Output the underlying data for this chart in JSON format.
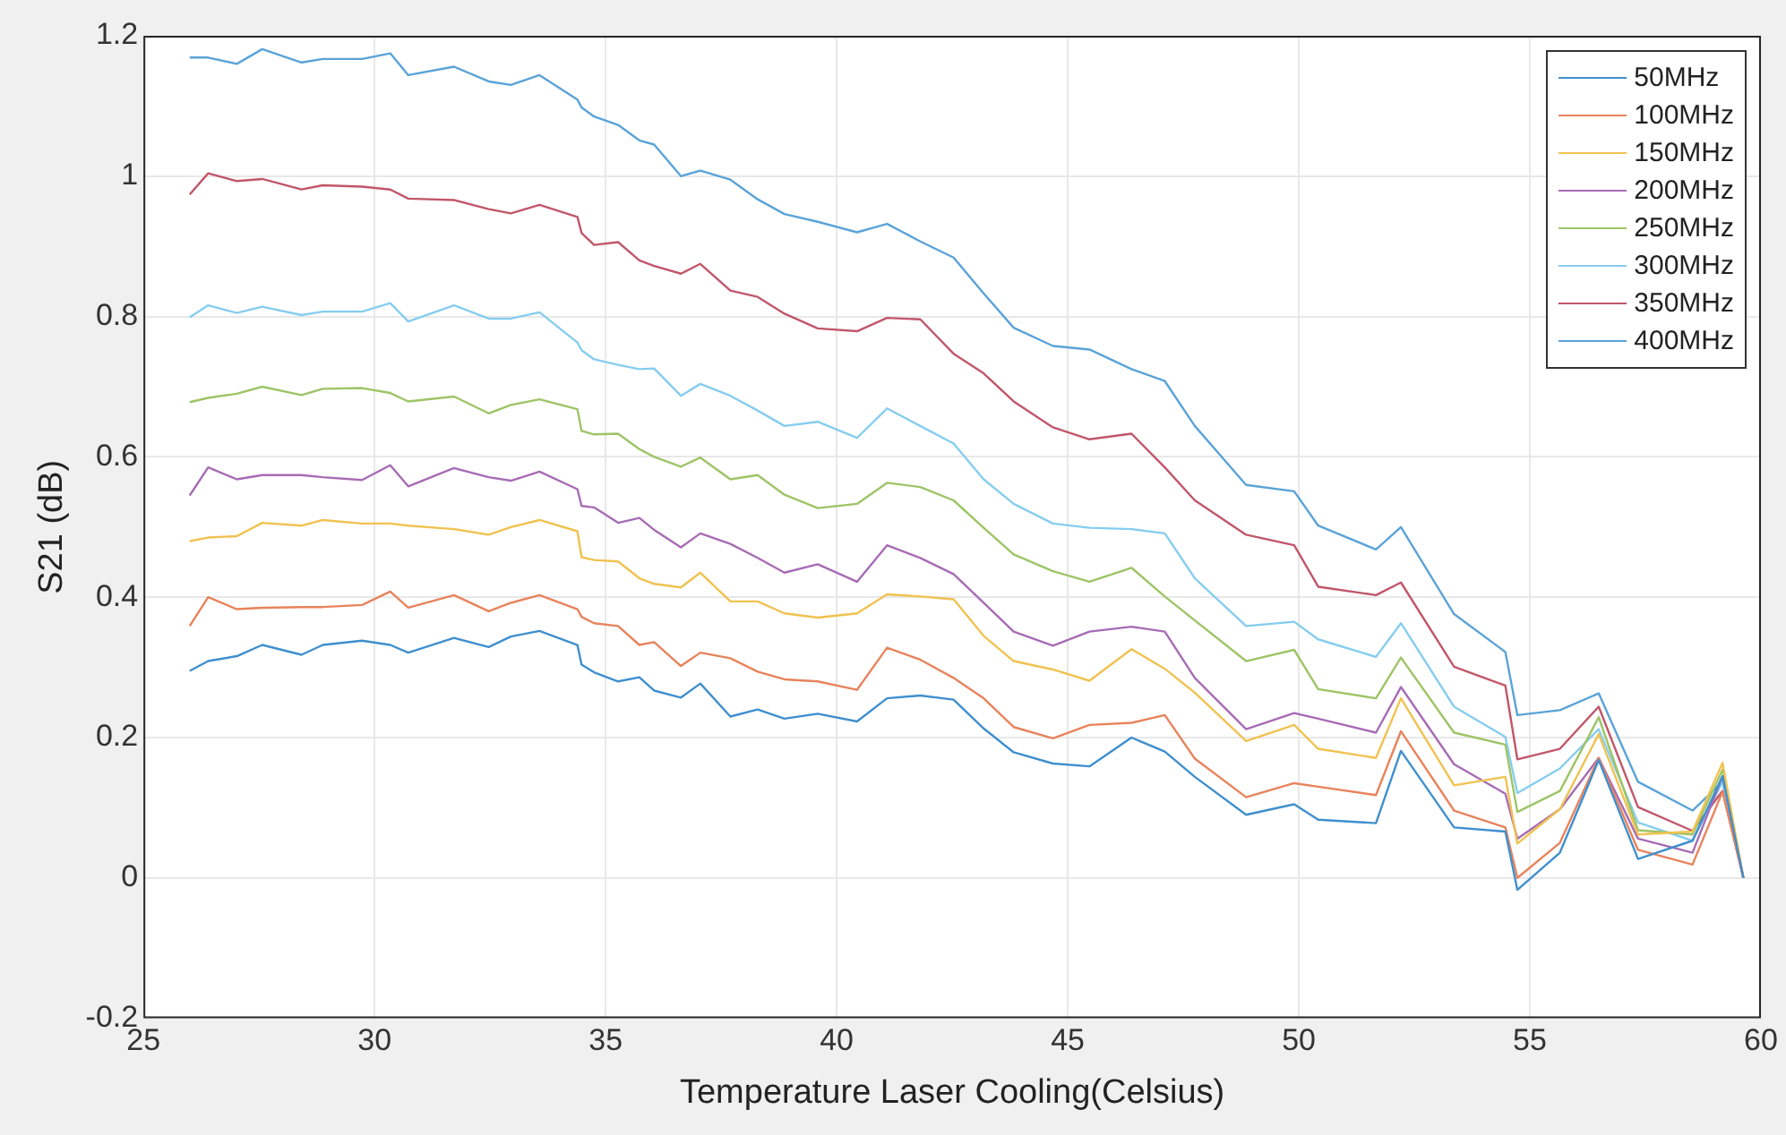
{
  "chart_data": {
    "type": "line",
    "xlabel": "Temperature Laser Cooling(Celsius)",
    "ylabel": "S21 (dB)",
    "x": [
      26.0,
      26.4,
      27.02,
      27.57,
      28.42,
      28.88,
      29.73,
      30.34,
      30.73,
      31.72,
      32.47,
      32.95,
      33.57,
      34.39,
      34.48,
      34.75,
      35.27,
      35.73,
      36.05,
      36.63,
      37.05,
      37.7,
      38.29,
      38.87,
      39.59,
      40.44,
      41.09,
      41.81,
      42.53,
      43.18,
      43.83,
      44.68,
      45.47,
      46.38,
      47.1,
      47.75,
      48.86,
      49.9,
      50.42,
      51.67,
      52.21,
      53.36,
      54.47,
      54.73,
      55.65,
      56.49,
      57.34,
      58.52,
      59.17,
      59.62
    ],
    "series": [
      {
        "name": "50MHz",
        "color": "#3f8fce",
        "values": [
          0.295,
          0.309,
          0.316,
          0.332,
          0.318,
          0.332,
          0.338,
          0.332,
          0.321,
          0.342,
          0.329,
          0.344,
          0.352,
          0.332,
          0.304,
          0.293,
          0.28,
          0.286,
          0.267,
          0.257,
          0.277,
          0.23,
          0.24,
          0.227,
          0.234,
          0.223,
          0.256,
          0.26,
          0.254,
          0.213,
          0.179,
          0.163,
          0.159,
          0.2,
          0.18,
          0.144,
          0.09,
          0.105,
          0.083,
          0.078,
          0.181,
          0.072,
          0.066,
          -0.017,
          0.036,
          0.168,
          0.027,
          0.053,
          0.145,
          0
        ]
      },
      {
        "name": "100MHz",
        "color": "#e8835c",
        "values": [
          0.359,
          0.4,
          0.383,
          0.385,
          0.386,
          0.386,
          0.389,
          0.408,
          0.385,
          0.403,
          0.38,
          0.392,
          0.403,
          0.383,
          0.372,
          0.363,
          0.359,
          0.332,
          0.336,
          0.302,
          0.321,
          0.313,
          0.294,
          0.283,
          0.28,
          0.268,
          0.328,
          0.311,
          0.285,
          0.256,
          0.215,
          0.199,
          0.218,
          0.221,
          0.232,
          0.17,
          0.115,
          0.135,
          0.13,
          0.118,
          0.209,
          0.096,
          0.072,
          0.0,
          0.05,
          0.171,
          0.04,
          0.019,
          0.123,
          0
        ]
      },
      {
        "name": "150MHz",
        "color": "#f0c250",
        "values": [
          0.48,
          0.485,
          0.487,
          0.506,
          0.502,
          0.51,
          0.505,
          0.505,
          0.502,
          0.497,
          0.489,
          0.5,
          0.51,
          0.494,
          0.457,
          0.453,
          0.451,
          0.427,
          0.419,
          0.414,
          0.435,
          0.394,
          0.394,
          0.377,
          0.371,
          0.377,
          0.404,
          0.401,
          0.397,
          0.345,
          0.309,
          0.297,
          0.281,
          0.326,
          0.298,
          0.264,
          0.195,
          0.218,
          0.184,
          0.171,
          0.256,
          0.132,
          0.144,
          0.049,
          0.098,
          0.205,
          0.062,
          0.066,
          0.164,
          0
        ]
      },
      {
        "name": "200MHz",
        "color": "#a76bb4",
        "values": [
          0.545,
          0.585,
          0.568,
          0.574,
          0.574,
          0.571,
          0.567,
          0.588,
          0.558,
          0.584,
          0.571,
          0.566,
          0.579,
          0.554,
          0.53,
          0.528,
          0.506,
          0.513,
          0.496,
          0.471,
          0.491,
          0.476,
          0.456,
          0.435,
          0.447,
          0.422,
          0.474,
          0.456,
          0.433,
          0.392,
          0.351,
          0.331,
          0.351,
          0.358,
          0.351,
          0.285,
          0.212,
          0.235,
          0.227,
          0.207,
          0.272,
          0.162,
          0.12,
          0.056,
          0.098,
          0.171,
          0.056,
          0.036,
          0.145,
          0
        ]
      },
      {
        "name": "250MHz",
        "color": "#9dc466",
        "values": [
          0.678,
          0.684,
          0.69,
          0.7,
          0.688,
          0.697,
          0.698,
          0.691,
          0.679,
          0.686,
          0.662,
          0.674,
          0.682,
          0.668,
          0.637,
          0.632,
          0.633,
          0.611,
          0.6,
          0.586,
          0.599,
          0.568,
          0.574,
          0.546,
          0.527,
          0.533,
          0.563,
          0.557,
          0.538,
          0.499,
          0.461,
          0.437,
          0.422,
          0.442,
          0.401,
          0.367,
          0.309,
          0.325,
          0.269,
          0.256,
          0.314,
          0.207,
          0.19,
          0.094,
          0.124,
          0.229,
          0.068,
          0.062,
          0.154,
          0
        ]
      },
      {
        "name": "300MHz",
        "color": "#86cdef",
        "values": [
          0.799,
          0.816,
          0.805,
          0.814,
          0.802,
          0.807,
          0.807,
          0.819,
          0.793,
          0.816,
          0.797,
          0.797,
          0.806,
          0.763,
          0.752,
          0.739,
          0.731,
          0.725,
          0.726,
          0.687,
          0.704,
          0.687,
          0.666,
          0.644,
          0.65,
          0.627,
          0.669,
          0.644,
          0.619,
          0.568,
          0.533,
          0.505,
          0.499,
          0.497,
          0.491,
          0.427,
          0.359,
          0.365,
          0.34,
          0.315,
          0.363,
          0.244,
          0.201,
          0.121,
          0.156,
          0.212,
          0.079,
          0.053,
          0.137,
          0
        ]
      },
      {
        "name": "350MHz",
        "color": "#c1566a",
        "values": [
          0.974,
          1.004,
          0.993,
          0.996,
          0.981,
          0.987,
          0.985,
          0.981,
          0.968,
          0.966,
          0.953,
          0.947,
          0.959,
          0.942,
          0.919,
          0.902,
          0.906,
          0.88,
          0.872,
          0.861,
          0.875,
          0.837,
          0.828,
          0.804,
          0.783,
          0.779,
          0.798,
          0.796,
          0.747,
          0.719,
          0.679,
          0.642,
          0.625,
          0.633,
          0.585,
          0.538,
          0.489,
          0.474,
          0.415,
          0.403,
          0.421,
          0.301,
          0.274,
          0.169,
          0.184,
          0.244,
          0.101,
          0.067,
          0.124,
          0
        ]
      },
      {
        "name": "400MHz",
        "color": "#5aa3d8",
        "values": [
          1.169,
          1.169,
          1.16,
          1.181,
          1.162,
          1.167,
          1.167,
          1.175,
          1.144,
          1.156,
          1.135,
          1.13,
          1.144,
          1.109,
          1.098,
          1.085,
          1.073,
          1.051,
          1.045,
          1.0,
          1.008,
          0.995,
          0.967,
          0.946,
          0.935,
          0.92,
          0.932,
          0.907,
          0.884,
          0.833,
          0.784,
          0.758,
          0.753,
          0.725,
          0.708,
          0.644,
          0.56,
          0.551,
          0.502,
          0.468,
          0.5,
          0.376,
          0.322,
          0.232,
          0.239,
          0.263,
          0.137,
          0.096,
          0.137,
          0
        ]
      }
    ],
    "xlim": [
      25,
      60
    ],
    "xticks": [
      25,
      30,
      35,
      40,
      45,
      50,
      55,
      60
    ],
    "ylim": [
      -0.2,
      1.2
    ],
    "yticks": [
      -0.2,
      0,
      0.2,
      0.4,
      0.6,
      0.8,
      1,
      1.2
    ],
    "grid": true,
    "legend": "top right",
    "marker": "none",
    "line_style": "solid"
  }
}
